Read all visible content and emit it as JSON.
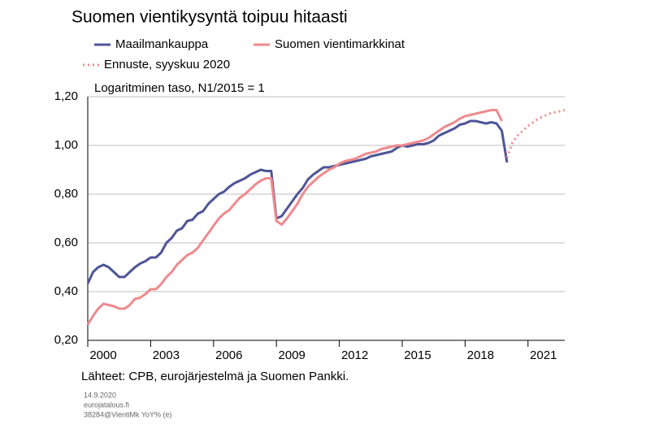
{
  "chart_data": {
    "type": "line",
    "title": "Suomen vientikysyntä toipuu hitaasti",
    "subtitle": "Logaritminen taso, N1/2015 = 1",
    "source": "Lähteet: CPB, eurojärjestelmä  ja Suomen Pankki.",
    "notes": [
      "14.9.2020",
      "eurojatalous.fi",
      "38284@VientiMk YoY% (e)"
    ],
    "x": [
      2000,
      2000.25,
      2000.5,
      2000.75,
      2001,
      2001.25,
      2001.5,
      2001.75,
      2002,
      2002.25,
      2002.5,
      2002.75,
      2003,
      2003.25,
      2003.5,
      2003.75,
      2004,
      2004.25,
      2004.5,
      2004.75,
      2005,
      2005.25,
      2005.5,
      2005.75,
      2006,
      2006.25,
      2006.5,
      2006.75,
      2007,
      2007.25,
      2007.5,
      2007.75,
      2008,
      2008.25,
      2008.5,
      2008.75,
      2009,
      2009.25,
      2009.5,
      2009.75,
      2010,
      2010.25,
      2010.5,
      2010.75,
      2011,
      2011.25,
      2011.5,
      2011.75,
      2012,
      2012.25,
      2012.5,
      2012.75,
      2013,
      2013.25,
      2013.5,
      2013.75,
      2014,
      2014.25,
      2014.5,
      2014.75,
      2015,
      2015.25,
      2015.5,
      2015.75,
      2016,
      2016.25,
      2016.5,
      2016.75,
      2017,
      2017.25,
      2017.5,
      2017.75,
      2018,
      2018.25,
      2018.5,
      2018.75,
      2019,
      2019.25,
      2019.5,
      2019.75,
      2020,
      2020.25,
      2020.5,
      2020.75,
      2021,
      2021.25,
      2021.5,
      2021.75,
      2022,
      2022.25,
      2022.5,
      2022.75
    ],
    "series": [
      {
        "name": "Maailmankauppa",
        "color": "#4f5596",
        "dashed": false,
        "values": [
          0.433,
          0.48,
          0.5,
          0.51,
          0.5,
          0.48,
          0.46,
          0.46,
          0.48,
          0.5,
          0.515,
          0.525,
          0.54,
          0.54,
          0.56,
          0.6,
          0.62,
          0.65,
          0.66,
          0.69,
          0.695,
          0.72,
          0.73,
          0.76,
          0.78,
          0.8,
          0.81,
          0.83,
          0.845,
          0.855,
          0.865,
          0.88,
          0.89,
          0.9,
          0.895,
          0.895,
          0.7,
          0.71,
          0.74,
          0.77,
          0.8,
          0.825,
          0.86,
          0.88,
          0.895,
          0.91,
          0.91,
          0.915,
          0.92,
          0.925,
          0.93,
          0.935,
          0.94,
          0.945,
          0.955,
          0.96,
          0.965,
          0.97,
          0.975,
          0.99,
          1.0,
          0.995,
          1.0,
          1.005,
          1.005,
          1.01,
          1.02,
          1.04,
          1.05,
          1.06,
          1.07,
          1.085,
          1.09,
          1.1,
          1.1,
          1.095,
          1.09,
          1.095,
          1.09,
          1.06,
          0.93,
          null,
          null,
          null,
          null,
          null,
          null,
          null,
          null,
          null,
          null,
          null
        ]
      },
      {
        "name": "Suomen vientimarkkinat",
        "color": "#ee8a8e",
        "dashed": false,
        "values": [
          0.265,
          0.3,
          0.33,
          0.35,
          0.345,
          0.34,
          0.33,
          0.33,
          0.345,
          0.37,
          0.375,
          0.39,
          0.41,
          0.41,
          0.43,
          0.46,
          0.48,
          0.51,
          0.53,
          0.55,
          0.56,
          0.58,
          0.61,
          0.64,
          0.67,
          0.7,
          0.72,
          0.735,
          0.76,
          0.785,
          0.8,
          0.82,
          0.84,
          0.855,
          0.865,
          0.865,
          0.69,
          0.675,
          0.7,
          0.73,
          0.76,
          0.8,
          0.83,
          0.85,
          0.87,
          0.885,
          0.9,
          0.91,
          0.925,
          0.935,
          0.94,
          0.945,
          0.955,
          0.965,
          0.97,
          0.975,
          0.985,
          0.99,
          0.995,
          1.0,
          1.0,
          1.005,
          1.01,
          1.015,
          1.02,
          1.03,
          1.045,
          1.06,
          1.075,
          1.085,
          1.095,
          1.11,
          1.12,
          1.125,
          1.13,
          1.135,
          1.14,
          1.145,
          1.145,
          1.1,
          null,
          null,
          null,
          null,
          null,
          null,
          null,
          null,
          null,
          null,
          null,
          null
        ]
      },
      {
        "name": "Ennuste, syyskuu 2020",
        "color": "#ee8a8e",
        "dashed": true,
        "values": [
          null,
          null,
          null,
          null,
          null,
          null,
          null,
          null,
          null,
          null,
          null,
          null,
          null,
          null,
          null,
          null,
          null,
          null,
          null,
          null,
          null,
          null,
          null,
          null,
          null,
          null,
          null,
          null,
          null,
          null,
          null,
          null,
          null,
          null,
          null,
          null,
          null,
          null,
          null,
          null,
          null,
          null,
          null,
          null,
          null,
          null,
          null,
          null,
          null,
          null,
          null,
          null,
          null,
          null,
          null,
          null,
          null,
          null,
          null,
          null,
          null,
          null,
          null,
          null,
          null,
          null,
          null,
          null,
          null,
          null,
          null,
          null,
          null,
          null,
          null,
          null,
          null,
          null,
          null,
          null,
          0.95,
          1.01,
          1.04,
          1.06,
          1.08,
          1.095,
          1.11,
          1.12,
          1.13,
          1.135,
          1.14,
          1.145
        ]
      }
    ],
    "xlim": [
      2000,
      2022.75
    ],
    "xticks": [
      2000,
      2003,
      2006,
      2009,
      2012,
      2015,
      2018,
      2021
    ],
    "ylim": [
      0.2,
      1.2
    ],
    "yticks": [
      {
        "value": 0.2,
        "label": "0,20"
      },
      {
        "value": 0.4,
        "label": "0,40"
      },
      {
        "value": 0.6,
        "label": "0,60"
      },
      {
        "value": 0.8,
        "label": "0,80"
      },
      {
        "value": 1.0,
        "label": "1,00"
      },
      {
        "value": 1.2,
        "label": "1,20"
      }
    ],
    "grid": true
  }
}
